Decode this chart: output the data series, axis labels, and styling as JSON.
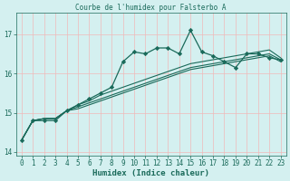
{
  "title": "Courbe de l'humidex pour Falsterbo A",
  "xlabel": "Humidex (Indice chaleur)",
  "bg_color": "#d4f0f0",
  "grid_color": "#f0b8b8",
  "line_color": "#1a6a5a",
  "xlim": [
    -0.5,
    23.5
  ],
  "ylim": [
    13.9,
    17.55
  ],
  "yticks": [
    14,
    15,
    16,
    17
  ],
  "xticks": [
    0,
    1,
    2,
    3,
    4,
    5,
    6,
    7,
    8,
    9,
    10,
    11,
    12,
    13,
    14,
    15,
    16,
    17,
    18,
    19,
    20,
    21,
    22,
    23
  ],
  "series": [
    [
      14.3,
      14.8,
      14.8,
      14.8,
      15.05,
      15.2,
      15.35,
      15.5,
      15.65,
      16.3,
      16.55,
      16.5,
      16.65,
      16.65,
      16.5,
      17.1,
      16.55,
      16.45,
      16.3,
      16.15,
      16.5,
      16.5,
      16.4,
      16.35
    ],
    [
      14.3,
      14.8,
      14.85,
      14.85,
      15.05,
      15.2,
      15.3,
      15.45,
      15.55,
      15.65,
      15.75,
      15.85,
      15.95,
      16.05,
      16.15,
      16.25,
      16.3,
      16.35,
      16.4,
      16.45,
      16.5,
      16.55,
      16.6,
      16.4
    ],
    [
      14.3,
      14.8,
      14.85,
      14.85,
      15.05,
      15.15,
      15.25,
      15.35,
      15.45,
      15.55,
      15.65,
      15.75,
      15.85,
      15.95,
      16.05,
      16.15,
      16.2,
      16.25,
      16.3,
      16.35,
      16.4,
      16.45,
      16.5,
      16.35
    ],
    [
      14.3,
      14.8,
      14.85,
      14.85,
      15.05,
      15.1,
      15.2,
      15.3,
      15.4,
      15.5,
      15.6,
      15.7,
      15.8,
      15.9,
      16.0,
      16.1,
      16.15,
      16.2,
      16.25,
      16.3,
      16.35,
      16.4,
      16.45,
      16.3
    ]
  ]
}
